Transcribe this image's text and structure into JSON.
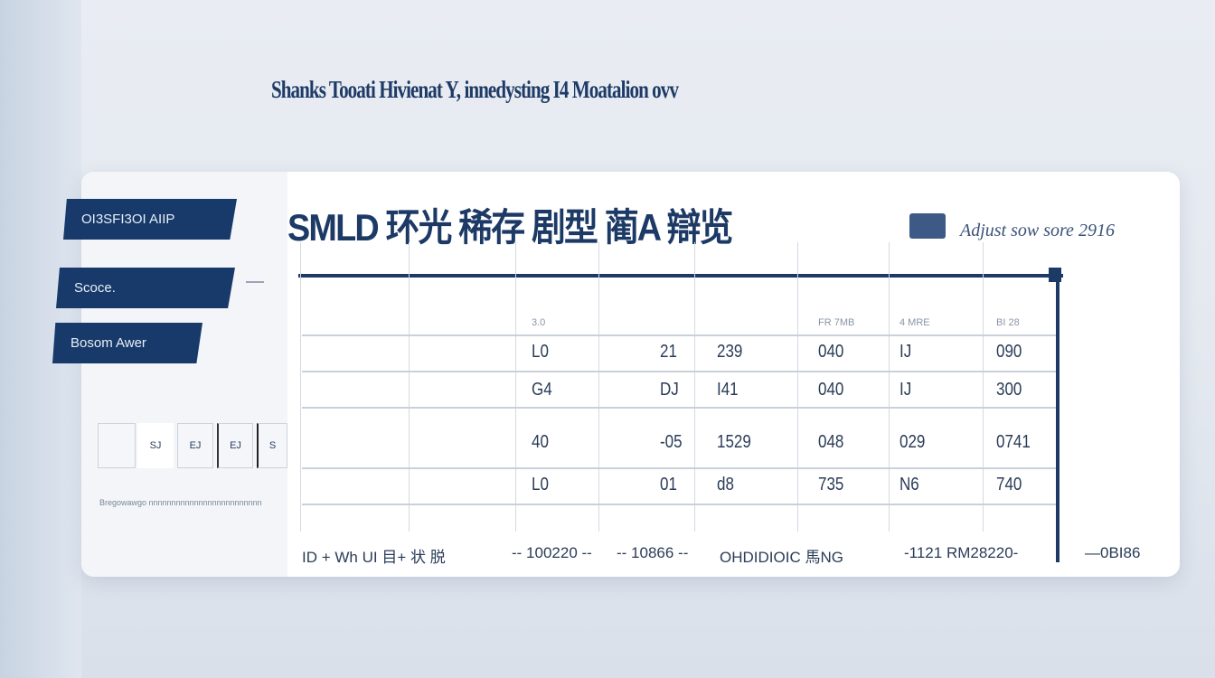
{
  "title": "Shanks Tooati Hivienat Y, innedysting I4 Moatalion ovv",
  "sidebar": {
    "items": [
      {
        "label": "OI3SFI3OI AIIP"
      },
      {
        "label": "Scoce."
      },
      {
        "label": "Bosom Awer"
      }
    ],
    "thumbnails": [
      "",
      "SJ",
      "EJ",
      "EJ",
      "S"
    ],
    "caption": "Bregowawgo nnnnnnnnnnnnnnnnnnnnnnnnn"
  },
  "main": {
    "heading": "SMLD 环光 稀存 剧型 蔺A 辯览",
    "subtitle": "Adjust sow sore 2916",
    "table": {
      "headers": [
        "",
        "",
        "3.0",
        "",
        "",
        "FR 7MB",
        "4 MRE",
        "BI 28"
      ],
      "rows": [
        [
          "",
          "",
          "L0",
          "21",
          "239",
          "040",
          "IJ",
          "090"
        ],
        [
          "",
          "",
          "G4",
          "DJ",
          "I41",
          "040",
          "IJ",
          "300"
        ],
        [
          "",
          "",
          "40",
          "-05",
          "1529",
          "048",
          "029",
          "0741"
        ],
        [
          "",
          "",
          "L0",
          "01",
          "d8",
          "735",
          "N6",
          "740"
        ]
      ]
    },
    "footer": [
      "ID + Wh UI 目+ 状 脱",
      "-- 100220 --",
      "-- 10866 --",
      "OHDIDIOIC 馬NG",
      "-1121 RM28220-",
      "—0BI86"
    ]
  },
  "colors": {
    "accent": "#173a6a",
    "background": "#e6ebf1",
    "card": "#ffffff"
  }
}
